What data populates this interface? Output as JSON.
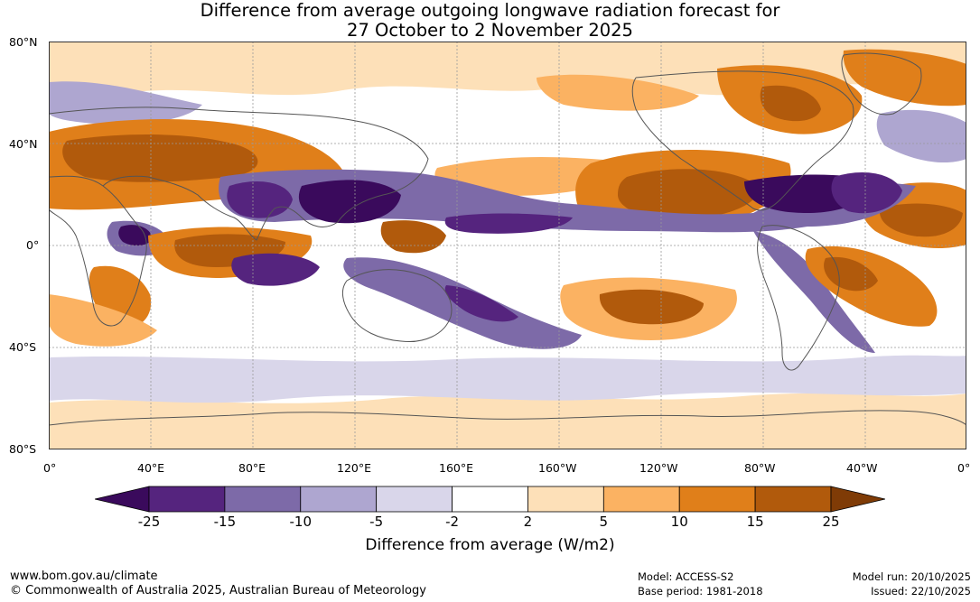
{
  "title_line1": "Difference from average outgoing longwave radiation forecast for",
  "title_line2": "27 October to 2 November 2025",
  "lat_labels": [
    "80°N",
    "40°N",
    "0°",
    "40°S",
    "80°S"
  ],
  "lon_labels": [
    "0°",
    "40°E",
    "80°E",
    "120°E",
    "160°E",
    "160°W",
    "120°W",
    "80°W",
    "40°W",
    "0°"
  ],
  "colorbar": {
    "label": "Difference from average (W/m2)",
    "ticks": [
      "-25",
      "-15",
      "-10",
      "-5",
      "-2",
      "2",
      "5",
      "10",
      "15",
      "25"
    ],
    "colors": [
      "#3a0a5c",
      "#55247e",
      "#7d6aa8",
      "#aea6d0",
      "#d9d6ea",
      "#ffffff",
      "#fde0b8",
      "#fbb262",
      "#e07f1a",
      "#b15a0c",
      "#7f3b06"
    ]
  },
  "footer": {
    "url": "www.bom.gov.au/climate",
    "copyright": "© Commonwealth of Australia 2025, Australian Bureau of Meteorology",
    "model": "Model: ACCESS-S2",
    "base_period": "Base period: 1981-2018",
    "model_run": "Model run: 20/10/2025",
    "issued": "Issued: 22/10/2025"
  }
}
